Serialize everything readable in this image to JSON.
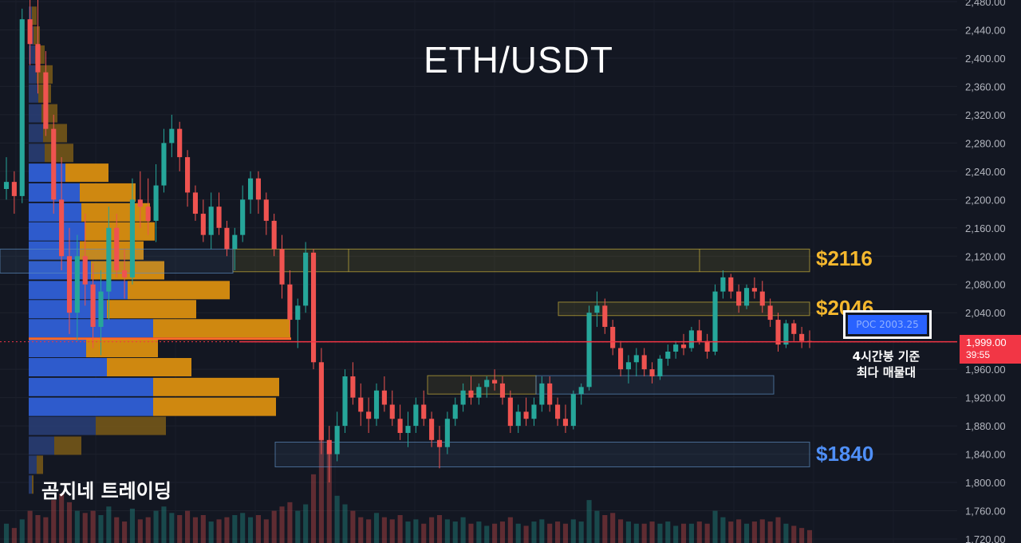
{
  "chart_data": {
    "type": "candlestick",
    "title": "ETH/USDT",
    "watermark": "곰지네 트레이딩",
    "y_axis": {
      "ylim": [
        1718,
        2482
      ],
      "ticks": [
        "2,480.00",
        "2,440.00",
        "2,400.00",
        "2,360.00",
        "2,320.00",
        "2,280.00",
        "2,240.00",
        "2,200.00",
        "2,160.00",
        "2,120.00",
        "2,080.00",
        "2,040.00",
        "1,960.00",
        "1,920.00",
        "1,880.00",
        "1,840.00",
        "1,800.00",
        "1,760.00",
        "1,720.00"
      ],
      "tick_values": [
        2480,
        2440,
        2400,
        2360,
        2320,
        2280,
        2240,
        2200,
        2160,
        2120,
        2080,
        2040,
        1960,
        1920,
        1880,
        1840,
        1800,
        1760,
        1720
      ]
    },
    "current_price": {
      "label": "1,999.00",
      "countdown": "39:55",
      "value": 1999
    },
    "poc": {
      "label": "POC  2003.25",
      "value": 2003.25,
      "note_line1": "4시간봉 기준",
      "note_line2": "최다 매물대"
    },
    "zone_labels": [
      {
        "text": "$2116",
        "value": 2116,
        "color": "#f5b82e"
      },
      {
        "text": "$2046",
        "value": 2046,
        "color": "#f5b82e"
      },
      {
        "text": "$1840",
        "value": 1840,
        "color": "#4f8ff7"
      }
    ],
    "zones": [
      {
        "from": 2098,
        "to": 2130,
        "color": "#c9b13a",
        "kind": "resistance"
      },
      {
        "from": 2036,
        "to": 2055,
        "color": "#c9b13a",
        "kind": "resistance"
      },
      {
        "from": 1925,
        "to": 1951,
        "color": "#c9b13a",
        "kind": "support-bull"
      },
      {
        "from": 1925,
        "to": 1951,
        "color": "#5d8bbf",
        "kind": "support"
      },
      {
        "from": 1822,
        "to": 1857,
        "color": "#5d8bbf",
        "kind": "support"
      },
      {
        "from": 2096,
        "to": 2130,
        "color": "#5d8bbf",
        "kind": "range"
      }
    ],
    "volume_profile": [
      {
        "price": 2460,
        "buy": 4,
        "sell": 6
      },
      {
        "price": 2432,
        "buy": 6,
        "sell": 8
      },
      {
        "price": 2405,
        "buy": 8,
        "sell": 12
      },
      {
        "price": 2377,
        "buy": 10,
        "sell": 20
      },
      {
        "price": 2350,
        "buy": 12,
        "sell": 16
      },
      {
        "price": 2322,
        "buy": 16,
        "sell": 20
      },
      {
        "price": 2294,
        "buy": 18,
        "sell": 30
      },
      {
        "price": 2266,
        "buy": 20,
        "sell": 36
      },
      {
        "price": 2238,
        "buy": 46,
        "sell": 54
      },
      {
        "price": 2210,
        "buy": 64,
        "sell": 70
      },
      {
        "price": 2182,
        "buy": 66,
        "sell": 86
      },
      {
        "price": 2155,
        "buy": 70,
        "sell": 88
      },
      {
        "price": 2128,
        "buy": 64,
        "sell": 80
      },
      {
        "price": 2100,
        "buy": 78,
        "sell": 92
      },
      {
        "price": 2072,
        "buy": 124,
        "sell": 128
      },
      {
        "price": 2045,
        "buy": 98,
        "sell": 112
      },
      {
        "price": 2018,
        "buy": 156,
        "sell": 172
      },
      {
        "price": 1990,
        "buy": 72,
        "sell": 90
      },
      {
        "price": 1963,
        "buy": 98,
        "sell": 106
      },
      {
        "price": 1935,
        "buy": 156,
        "sell": 158
      },
      {
        "price": 1907,
        "buy": 156,
        "sell": 154
      },
      {
        "price": 1880,
        "buy": 84,
        "sell": 88
      },
      {
        "price": 1852,
        "buy": 32,
        "sell": 34
      },
      {
        "price": 1825,
        "buy": 10,
        "sell": 8
      },
      {
        "price": 1797,
        "buy": 4,
        "sell": 2
      }
    ],
    "candles": [
      [
        2215,
        2260,
        2200,
        2225
      ],
      [
        2225,
        2240,
        2180,
        2205
      ],
      [
        2205,
        2470,
        2195,
        2455
      ],
      [
        2455,
        2520,
        2390,
        2420
      ],
      [
        2420,
        2500,
        2350,
        2380
      ],
      [
        2380,
        2410,
        2290,
        2300
      ],
      [
        2300,
        2320,
        2180,
        2200
      ],
      [
        2200,
        2260,
        2100,
        2120
      ],
      [
        2120,
        2160,
        2010,
        2040
      ],
      [
        2040,
        2150,
        2000,
        2120
      ],
      [
        2120,
        2180,
        2050,
        2080
      ],
      [
        2080,
        2110,
        1990,
        2020
      ],
      [
        2020,
        2100,
        1980,
        2070
      ],
      [
        2070,
        2190,
        2030,
        2160
      ],
      [
        2160,
        2180,
        2090,
        2100
      ],
      [
        2100,
        2130,
        2060,
        2090
      ],
      [
        2090,
        2230,
        2080,
        2200
      ],
      [
        2200,
        2240,
        2160,
        2190
      ],
      [
        2190,
        2230,
        2150,
        2170
      ],
      [
        2170,
        2250,
        2140,
        2220
      ],
      [
        2220,
        2300,
        2210,
        2280
      ],
      [
        2280,
        2320,
        2260,
        2300
      ],
      [
        2300,
        2310,
        2240,
        2260
      ],
      [
        2260,
        2270,
        2190,
        2210
      ],
      [
        2210,
        2220,
        2170,
        2180
      ],
      [
        2180,
        2200,
        2140,
        2150
      ],
      [
        2150,
        2210,
        2130,
        2190
      ],
      [
        2190,
        2210,
        2150,
        2160
      ],
      [
        2160,
        2170,
        2120,
        2130
      ],
      [
        2130,
        2160,
        2100,
        2150
      ],
      [
        2150,
        2220,
        2140,
        2200
      ],
      [
        2200,
        2240,
        2180,
        2230
      ],
      [
        2230,
        2240,
        2180,
        2200
      ],
      [
        2200,
        2210,
        2150,
        2170
      ],
      [
        2170,
        2180,
        2120,
        2130
      ],
      [
        2130,
        2150,
        2060,
        2080
      ],
      [
        2080,
        2100,
        2010,
        2030
      ],
      [
        2030,
        2060,
        1990,
        2050
      ],
      [
        2050,
        2140,
        2040,
        2125
      ],
      [
        2125,
        2130,
        1960,
        1970
      ],
      [
        1970,
        1990,
        1840,
        1860
      ],
      [
        1860,
        1880,
        1800,
        1840
      ],
      [
        1840,
        1900,
        1830,
        1880
      ],
      [
        1880,
        1960,
        1870,
        1950
      ],
      [
        1950,
        1970,
        1910,
        1920
      ],
      [
        1920,
        1940,
        1880,
        1900
      ],
      [
        1900,
        1920,
        1870,
        1890
      ],
      [
        1890,
        1940,
        1880,
        1930
      ],
      [
        1930,
        1950,
        1900,
        1910
      ],
      [
        1910,
        1930,
        1880,
        1890
      ],
      [
        1890,
        1910,
        1860,
        1870
      ],
      [
        1870,
        1900,
        1850,
        1880
      ],
      [
        1880,
        1920,
        1870,
        1910
      ],
      [
        1910,
        1930,
        1880,
        1890
      ],
      [
        1890,
        1900,
        1850,
        1860
      ],
      [
        1860,
        1880,
        1820,
        1850
      ],
      [
        1850,
        1900,
        1840,
        1890
      ],
      [
        1890,
        1920,
        1880,
        1910
      ],
      [
        1910,
        1940,
        1900,
        1930
      ],
      [
        1930,
        1950,
        1910,
        1920
      ],
      [
        1920,
        1940,
        1910,
        1935
      ],
      [
        1935,
        1950,
        1920,
        1945
      ],
      [
        1945,
        1960,
        1930,
        1940
      ],
      [
        1940,
        1950,
        1910,
        1920
      ],
      [
        1920,
        1930,
        1870,
        1880
      ],
      [
        1880,
        1910,
        1870,
        1900
      ],
      [
        1900,
        1920,
        1880,
        1890
      ],
      [
        1890,
        1920,
        1880,
        1910
      ],
      [
        1910,
        1950,
        1900,
        1940
      ],
      [
        1940,
        1950,
        1900,
        1910
      ],
      [
        1910,
        1920,
        1880,
        1890
      ],
      [
        1890,
        1910,
        1870,
        1880
      ],
      [
        1880,
        1930,
        1875,
        1925
      ],
      [
        1925,
        1940,
        1910,
        1935
      ],
      [
        1935,
        2050,
        1930,
        2040
      ],
      [
        2040,
        2070,
        2020,
        2050
      ],
      [
        2050,
        2060,
        2010,
        2020
      ],
      [
        2020,
        2030,
        1980,
        1990
      ],
      [
        1990,
        2000,
        1950,
        1960
      ],
      [
        1960,
        1980,
        1940,
        1970
      ],
      [
        1970,
        1990,
        1950,
        1980
      ],
      [
        1980,
        1990,
        1950,
        1960
      ],
      [
        1960,
        1970,
        1940,
        1950
      ],
      [
        1950,
        1980,
        1945,
        1975
      ],
      [
        1975,
        1995,
        1965,
        1985
      ],
      [
        1985,
        2000,
        1975,
        1995
      ],
      [
        1995,
        2010,
        1980,
        1990
      ],
      [
        1990,
        2020,
        1985,
        2015
      ],
      [
        2015,
        2030,
        1995,
        2000
      ],
      [
        2000,
        2010,
        1975,
        1985
      ],
      [
        1985,
        2080,
        1980,
        2070
      ],
      [
        2070,
        2100,
        2060,
        2090
      ],
      [
        2090,
        2095,
        2060,
        2070
      ],
      [
        2070,
        2080,
        2040,
        2050
      ],
      [
        2050,
        2080,
        2045,
        2075
      ],
      [
        2075,
        2090,
        2060,
        2070
      ],
      [
        2070,
        2085,
        2040,
        2050
      ],
      [
        2050,
        2060,
        2020,
        2030
      ],
      [
        2030,
        2040,
        1985,
        1995
      ],
      [
        1995,
        2030,
        1990,
        2025
      ],
      [
        2025,
        2030,
        2000,
        2010
      ],
      [
        2010,
        2020,
        1990,
        2000
      ],
      [
        2000,
        2015,
        1990,
        1999
      ]
    ],
    "volume": [
      18,
      14,
      22,
      30,
      26,
      24,
      40,
      46,
      38,
      30,
      28,
      30,
      26,
      34,
      24,
      20,
      32,
      22,
      24,
      30,
      34,
      28,
      26,
      30,
      24,
      26,
      20,
      22,
      24,
      26,
      28,
      24,
      26,
      22,
      30,
      34,
      38,
      30,
      36,
      64,
      110,
      90,
      44,
      36,
      30,
      24,
      22,
      28,
      24,
      22,
      26,
      20,
      22,
      18,
      24,
      26,
      22,
      20,
      24,
      18,
      20,
      16,
      18,
      20,
      24,
      18,
      16,
      20,
      22,
      18,
      20,
      18,
      22,
      20,
      40,
      30,
      26,
      28,
      22,
      20,
      18,
      18,
      20,
      18,
      20,
      16,
      18,
      18,
      20,
      18,
      30,
      24,
      20,
      22,
      18,
      20,
      22,
      20,
      24,
      18,
      16,
      14,
      12
    ]
  }
}
